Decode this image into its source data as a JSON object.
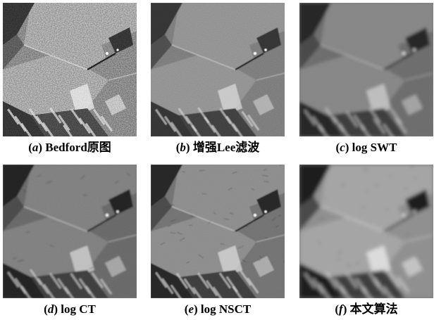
{
  "panels": [
    {
      "id": "a",
      "letter": "a",
      "label": "Bedford原图",
      "look": "noisy"
    },
    {
      "id": "b",
      "letter": "b",
      "label": "增强Lee滤波",
      "look": "lee"
    },
    {
      "id": "c",
      "letter": "c",
      "label": "log SWT",
      "look": "swt"
    },
    {
      "id": "d",
      "letter": "d",
      "label": "log CT",
      "look": "ct"
    },
    {
      "id": "e",
      "letter": "e",
      "label": "log NSCT",
      "look": "nsct"
    },
    {
      "id": "f",
      "letter": "f",
      "label": "本文算法",
      "look": "smooth"
    }
  ]
}
